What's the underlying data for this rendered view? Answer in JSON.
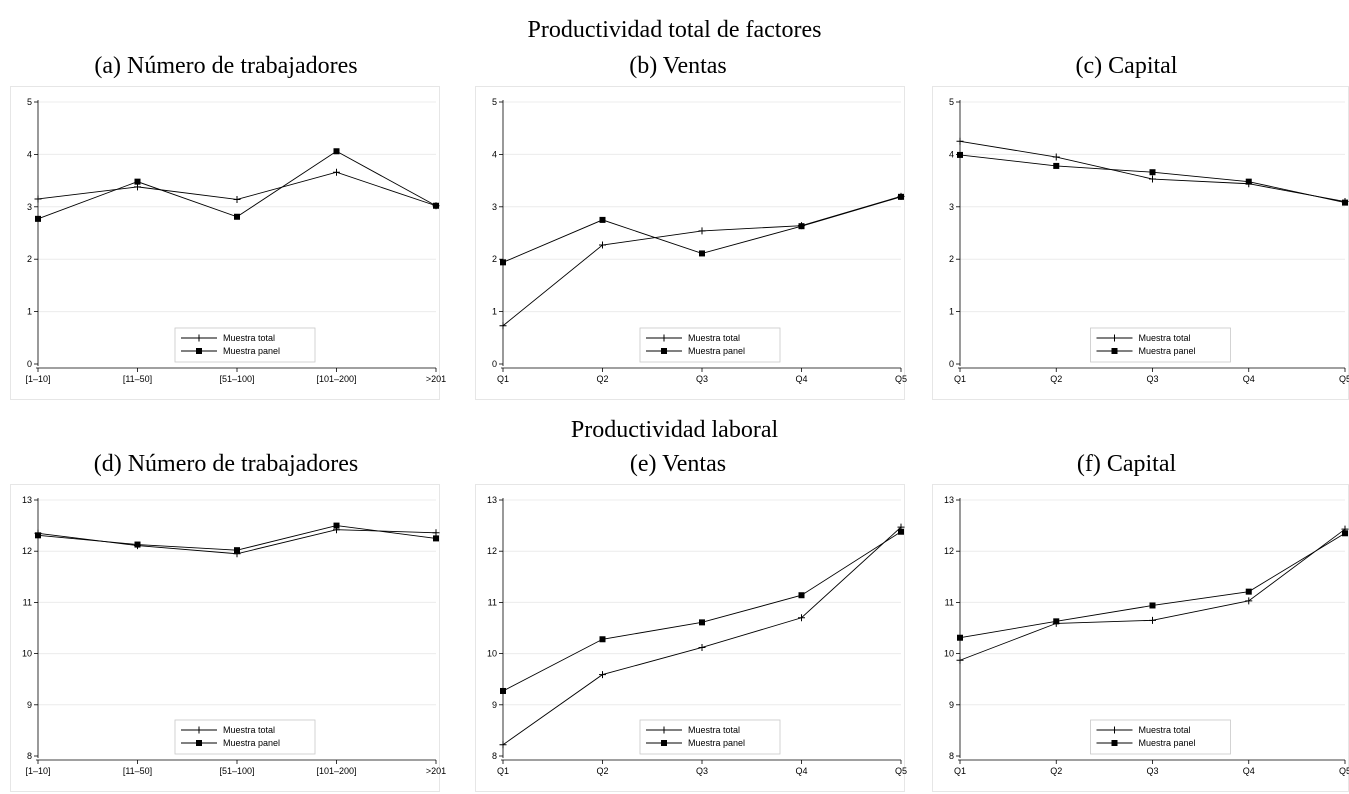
{
  "section_titles": [
    "Productividad total de factores",
    "Productividad laboral"
  ],
  "chart_data": [
    {
      "type": "line",
      "title": "(a) Número de trabajadores",
      "categories": [
        "[1–10]",
        "[11–50]",
        "[51–100]",
        "[101–200]",
        ">201"
      ],
      "ylim": [
        0,
        5
      ],
      "yticks": [
        0,
        1,
        2,
        3,
        4,
        5
      ],
      "grid": true,
      "legend": "bottom-center",
      "series": [
        {
          "name": "Muestra total",
          "marker": "plus",
          "values": [
            3.15,
            3.38,
            3.14,
            3.66,
            3.02
          ]
        },
        {
          "name": "Muestra panel",
          "marker": "square",
          "values": [
            2.77,
            3.48,
            2.81,
            4.06,
            3.02
          ]
        }
      ]
    },
    {
      "type": "line",
      "title": "(b) Ventas",
      "categories": [
        "Q1",
        "Q2",
        "Q3",
        "Q4",
        "Q5"
      ],
      "ylim": [
        0,
        5
      ],
      "yticks": [
        0,
        1,
        2,
        3,
        4,
        5
      ],
      "grid": true,
      "legend": "bottom-center",
      "series": [
        {
          "name": "Muestra total",
          "marker": "plus",
          "values": [
            0.73,
            2.27,
            2.54,
            2.64,
            3.2
          ]
        },
        {
          "name": "Muestra panel",
          "marker": "square",
          "values": [
            1.94,
            2.75,
            2.11,
            2.63,
            3.19
          ]
        }
      ]
    },
    {
      "type": "line",
      "title": "(c) Capital",
      "categories": [
        "Q1",
        "Q2",
        "Q3",
        "Q4",
        "Q5"
      ],
      "ylim": [
        0,
        5
      ],
      "yticks": [
        0,
        1,
        2,
        3,
        4,
        5
      ],
      "grid": true,
      "legend": "bottom-center",
      "series": [
        {
          "name": "Muestra total",
          "marker": "plus",
          "values": [
            4.25,
            3.95,
            3.53,
            3.44,
            3.1
          ]
        },
        {
          "name": "Muestra panel",
          "marker": "square",
          "values": [
            3.99,
            3.78,
            3.66,
            3.48,
            3.08
          ]
        }
      ]
    },
    {
      "type": "line",
      "title": "(d) Número de trabajadores",
      "categories": [
        "[1–10]",
        "[11–50]",
        "[51–100]",
        "[101–200]",
        ">201"
      ],
      "ylim": [
        8,
        13
      ],
      "yticks": [
        8,
        9,
        10,
        11,
        12,
        13
      ],
      "grid": true,
      "legend": "bottom-center",
      "series": [
        {
          "name": "Muestra total",
          "marker": "plus",
          "values": [
            12.35,
            12.11,
            11.95,
            12.42,
            12.36
          ]
        },
        {
          "name": "Muestra panel",
          "marker": "square",
          "values": [
            12.31,
            12.13,
            12.02,
            12.5,
            12.25
          ]
        }
      ]
    },
    {
      "type": "line",
      "title": "(e) Ventas",
      "categories": [
        "Q1",
        "Q2",
        "Q3",
        "Q4",
        "Q5"
      ],
      "ylim": [
        8,
        13
      ],
      "yticks": [
        8,
        9,
        10,
        11,
        12,
        13
      ],
      "grid": true,
      "legend": "bottom-center",
      "series": [
        {
          "name": "Muestra total",
          "marker": "plus",
          "values": [
            8.22,
            9.59,
            10.12,
            10.7,
            12.47
          ]
        },
        {
          "name": "Muestra panel",
          "marker": "square",
          "values": [
            9.27,
            10.28,
            10.61,
            11.14,
            12.38
          ]
        }
      ]
    },
    {
      "type": "line",
      "title": "(f) Capital",
      "categories": [
        "Q1",
        "Q2",
        "Q3",
        "Q4",
        "Q5"
      ],
      "ylim": [
        8,
        13
      ],
      "yticks": [
        8,
        9,
        10,
        11,
        12,
        13
      ],
      "grid": true,
      "legend": "bottom-center",
      "series": [
        {
          "name": "Muestra total",
          "marker": "plus",
          "values": [
            9.87,
            10.59,
            10.65,
            11.03,
            12.43
          ]
        },
        {
          "name": "Muestra panel",
          "marker": "square",
          "values": [
            10.31,
            10.63,
            10.94,
            11.21,
            12.35
          ]
        }
      ]
    }
  ]
}
